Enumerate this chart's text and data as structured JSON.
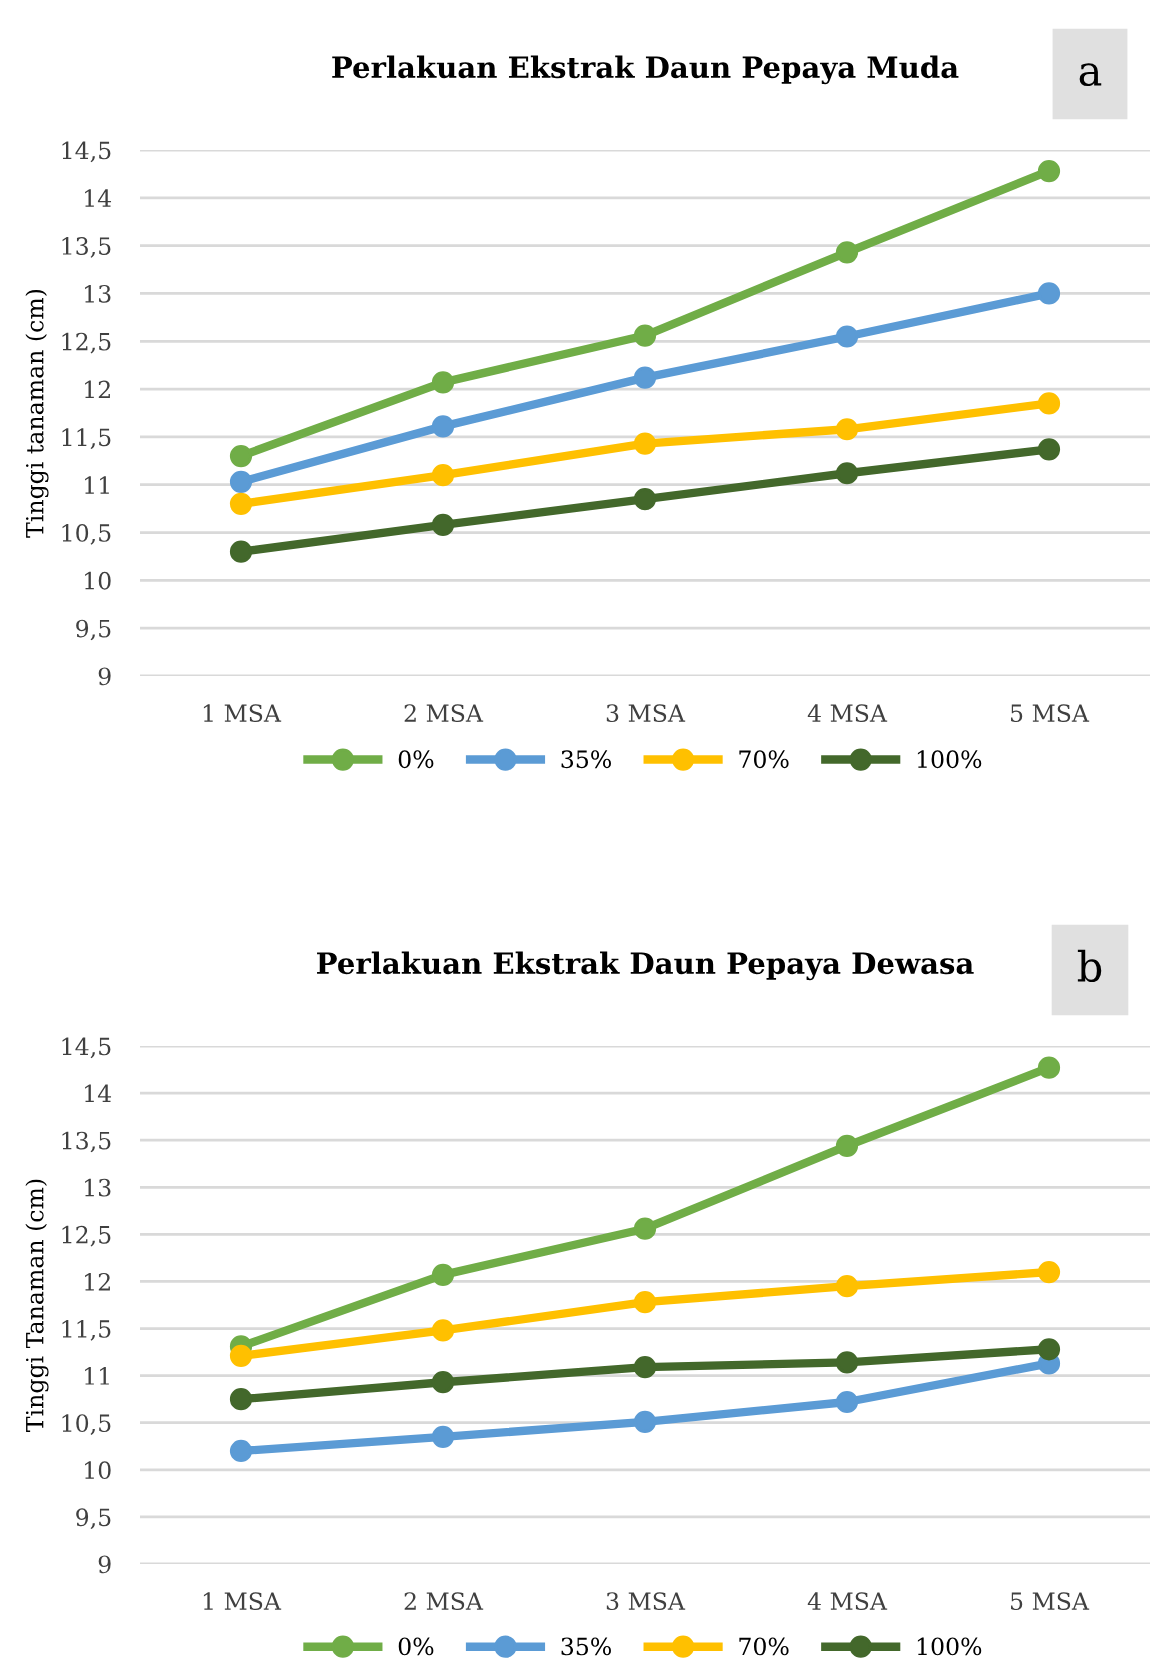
{
  "chart_data": [
    {
      "type": "line",
      "title": "Perlakuan Ekstrak Daun Pepaya Muda",
      "ylabel": "Tinggi tanaman (cm)",
      "annotations": [
        "a"
      ],
      "categories": [
        "1 MSA",
        "2 MSA",
        "3 MSA",
        "4 MSA",
        "5 MSA"
      ],
      "series": [
        {
          "name": "0%",
          "color": "#70ad47",
          "values": [
            11.3,
            12.07,
            12.56,
            13.43,
            14.28
          ]
        },
        {
          "name": "35%",
          "color": "#5b9bd5",
          "values": [
            11.03,
            11.61,
            12.12,
            12.55,
            13.0
          ]
        },
        {
          "name": "70%",
          "color": "#ffc000",
          "values": [
            10.8,
            11.1,
            11.43,
            11.58,
            11.85
          ]
        },
        {
          "name": "100%",
          "color": "#43682b",
          "values": [
            10.3,
            10.58,
            10.85,
            11.12,
            11.37
          ]
        }
      ],
      "ylim": [
        9,
        14.5
      ],
      "yticks": [
        9,
        {
          "value": 9.5,
          "label": "9,5"
        },
        10,
        {
          "value": 10.5,
          "label": "10,5"
        },
        11,
        {
          "value": 11.5,
          "label": "11,5"
        },
        12,
        {
          "value": 12.5,
          "label": "12,5"
        },
        13,
        {
          "value": 13.5,
          "label": "13,5"
        },
        14,
        {
          "value": 14.5,
          "label": "14,5"
        }
      ],
      "grid": "y",
      "legend": "bottom",
      "marker": "circle",
      "line_style": "solid"
    },
    {
      "type": "line",
      "title": "Perlakuan Ekstrak Daun Pepaya Dewasa",
      "ylabel": "Tinggi Tanaman (cm)",
      "annotations": [
        "b"
      ],
      "categories": [
        "1 MSA",
        "2 MSA",
        "3 MSA",
        "4 MSA",
        "5 MSA"
      ],
      "series": [
        {
          "name": "0%",
          "color": "#70ad47",
          "values": [
            11.31,
            12.07,
            12.56,
            13.44,
            14.27
          ]
        },
        {
          "name": "35%",
          "color": "#5b9bd5",
          "values": [
            10.2,
            10.35,
            10.51,
            10.72,
            11.13
          ]
        },
        {
          "name": "70%",
          "color": "#ffc000",
          "values": [
            11.21,
            11.48,
            11.78,
            11.95,
            12.1
          ]
        },
        {
          "name": "100%",
          "color": "#43682b",
          "values": [
            10.75,
            10.93,
            11.09,
            11.14,
            11.28
          ]
        }
      ],
      "ylim": [
        9,
        14.5
      ],
      "yticks": [
        9,
        {
          "value": 9.5,
          "label": "9,5"
        },
        10,
        {
          "value": 10.5,
          "label": "10,5"
        },
        11,
        {
          "value": 11.5,
          "label": "11,5"
        },
        12,
        {
          "value": 12.5,
          "label": "12,5"
        },
        13,
        {
          "value": 13.5,
          "label": "13,5"
        },
        14,
        {
          "value": 14.5,
          "label": "14,5"
        }
      ],
      "grid": "y",
      "legend": "bottom",
      "marker": "circle",
      "line_style": "solid"
    }
  ]
}
